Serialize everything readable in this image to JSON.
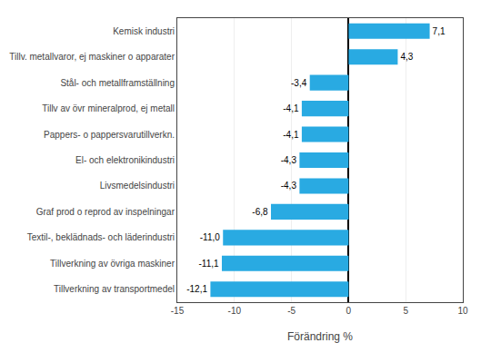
{
  "chart_data": {
    "type": "bar",
    "orientation": "horizontal",
    "categories": [
      "Tillverkning av transportmedel",
      "Tillverkning av övriga maskiner",
      "Textil-, beklädnads- och läderindustri",
      "Graf prod o reprod av inspelningar",
      "Livsmedelsindustri",
      "El- och elektronikindustri",
      "Pappers- o pappersvarutillverkn.",
      "Tillv av övr mineralprod, ej metall",
      "Stål- och metallframställning",
      "Tillv. metallvaror, ej maskiner o apparater",
      "Kemisk industri"
    ],
    "values": [
      -12.1,
      -11.1,
      -11.0,
      -6.8,
      -4.3,
      -4.3,
      -4.1,
      -4.1,
      -3.4,
      4.3,
      7.1
    ],
    "value_labels": [
      "-12,1",
      "-11,1",
      "-11,0",
      "-6,8",
      "-4,3",
      "-4,3",
      "-4,1",
      "-4,1",
      "-3,4",
      "4,3",
      "7,1"
    ],
    "data_labels": true,
    "color": "#29aae2",
    "xlabel": "Förändring %",
    "xlim": [
      -15,
      10
    ],
    "xticks": [
      -15,
      -10,
      -5,
      0,
      5,
      10
    ],
    "grid": true
  }
}
